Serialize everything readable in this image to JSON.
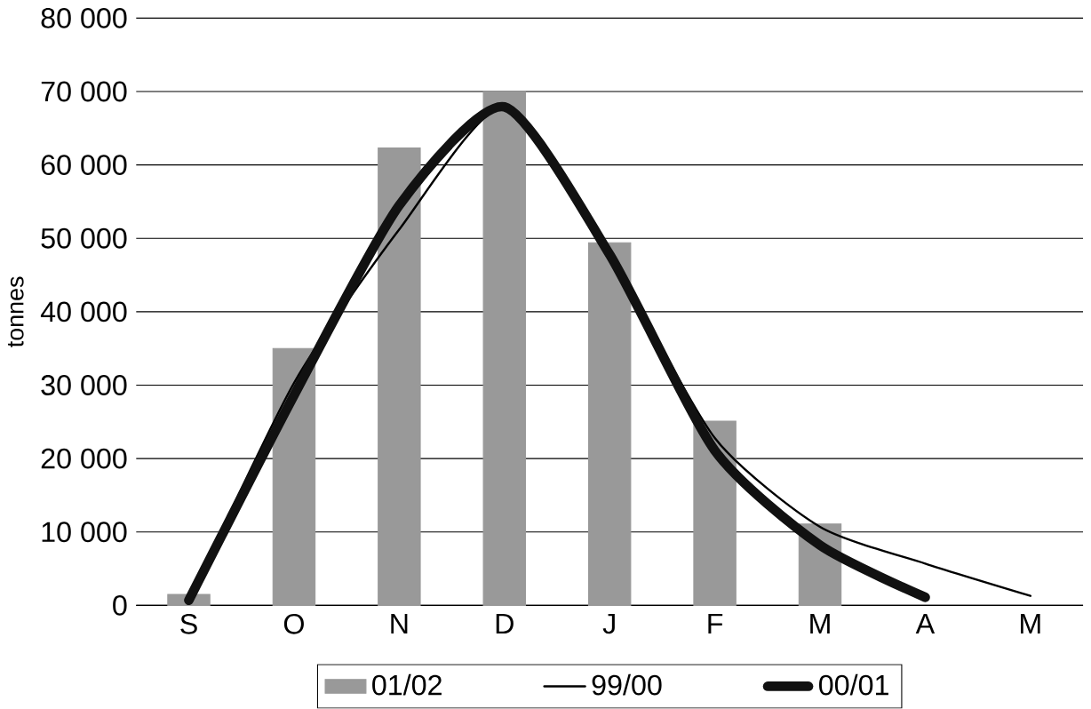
{
  "chart_data": {
    "type": "bar",
    "ylabel": "tonnes",
    "categories": [
      "S",
      "O",
      "N",
      "D",
      "J",
      "F",
      "M",
      "A",
      "M"
    ],
    "series": [
      {
        "name": "01/02",
        "color": "#999999",
        "values": [
          1500,
          35000,
          62300,
          70000,
          49400,
          25100,
          11100,
          null,
          null
        ]
      },
      {
        "name": "99/00",
        "type": "line",
        "color": "#000000",
        "values": [
          700,
          30300,
          51200,
          67900,
          47800,
          22800,
          10700,
          5700,
          1300
        ]
      },
      {
        "name": "00/01",
        "type": "line",
        "color": "#111111",
        "values": [
          700,
          28600,
          54500,
          67900,
          47800,
          21100,
          8200,
          1100,
          null
        ]
      }
    ],
    "ylim": [
      0,
      80000
    ],
    "yticks": [
      {
        "value": 0,
        "label": "0"
      },
      {
        "value": 10000,
        "label": "10 000"
      },
      {
        "value": 20000,
        "label": "20 000"
      },
      {
        "value": 30000,
        "label": "30 000"
      },
      {
        "value": 40000,
        "label": "40 000"
      },
      {
        "value": 50000,
        "label": "50 000"
      },
      {
        "value": 60000,
        "label": "60 000"
      },
      {
        "value": 70000,
        "label": "70 000"
      },
      {
        "value": 80000,
        "label": "80 000"
      }
    ],
    "grid": "y",
    "legend": "bottom",
    "marker": "none"
  }
}
